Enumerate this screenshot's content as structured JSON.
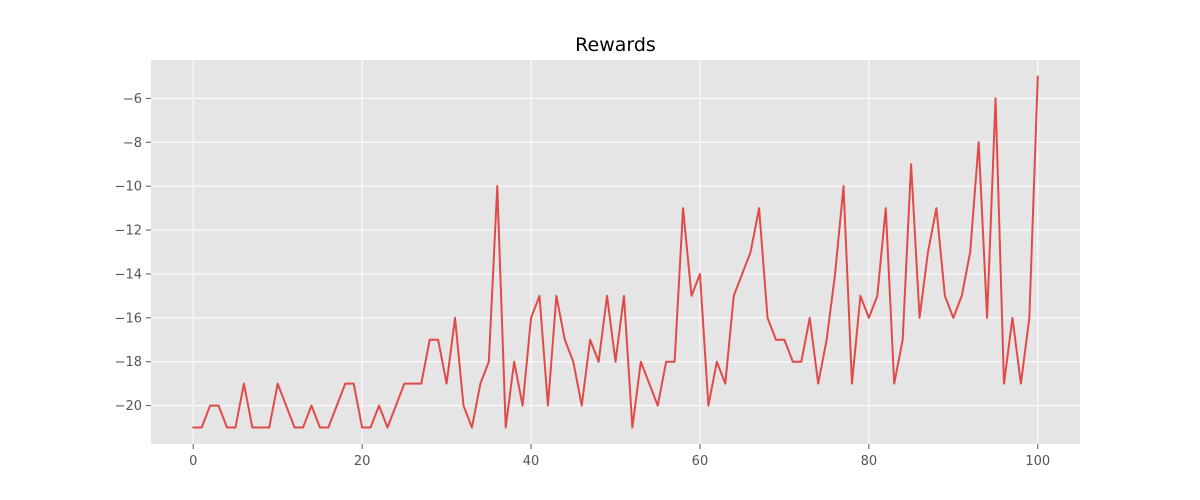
{
  "chart_data": {
    "type": "line",
    "title": "Rewards",
    "xlabel": "",
    "ylabel": "",
    "xlim": [
      -5,
      105
    ],
    "ylim": [
      -21.75,
      -4.25
    ],
    "xticks": [
      0,
      20,
      40,
      60,
      80,
      100
    ],
    "yticks": [
      -20,
      -18,
      -16,
      -14,
      -12,
      -10,
      -8,
      -6
    ],
    "grid": true,
    "legend": "none",
    "colors": {
      "plot_background": "#e5e5e5",
      "grid": "#ffffff",
      "line": "#e24a4a",
      "tick_text": "#555555"
    },
    "series": [
      {
        "x": [
          0,
          1,
          2,
          3,
          4,
          5,
          6,
          7,
          8,
          9,
          10,
          11,
          12,
          13,
          14,
          15,
          16,
          17,
          18,
          19,
          20,
          21,
          22,
          23,
          24,
          25,
          26,
          27,
          28,
          29,
          30,
          31,
          32,
          33,
          34,
          35,
          36,
          37,
          38,
          39,
          40,
          41,
          42,
          43,
          44,
          45,
          46,
          47,
          48,
          49,
          50,
          51,
          52,
          53,
          54,
          55,
          56,
          57,
          58,
          59,
          60,
          61,
          62,
          63,
          64,
          65,
          66,
          67,
          68,
          69,
          70,
          71,
          72,
          73,
          74,
          75,
          76,
          77,
          78,
          79,
          80,
          81,
          82,
          83,
          84,
          85,
          86,
          87,
          88,
          89,
          90,
          91,
          92,
          93,
          94,
          95,
          96,
          97,
          98,
          99,
          100
        ],
        "y": [
          -21,
          -21,
          -20,
          -20,
          -21,
          -21,
          -19,
          -21,
          -21,
          -21,
          -19,
          -20,
          -21,
          -21,
          -20,
          -21,
          -21,
          -20,
          -19,
          -19,
          -21,
          -21,
          -20,
          -21,
          -20,
          -19,
          -19,
          -19,
          -17,
          -17,
          -19,
          -16,
          -20,
          -21,
          -19,
          -18,
          -10,
          -21,
          -18,
          -20,
          -16,
          -15,
          -20,
          -15,
          -17,
          -18,
          -20,
          -17,
          -18,
          -15,
          -18,
          -15,
          -21,
          -18,
          -19,
          -20,
          -18,
          -18,
          -11,
          -15,
          -14,
          -20,
          -18,
          -19,
          -15,
          -14,
          -13,
          -11,
          -16,
          -17,
          -17,
          -18,
          -18,
          -16,
          -19,
          -17,
          -14,
          -10,
          -19,
          -15,
          -16,
          -15,
          -11,
          -19,
          -17,
          -9,
          -16,
          -13,
          -11,
          -15,
          -16,
          -15,
          -13,
          -8,
          -16,
          -6,
          -19,
          -16,
          -19,
          -16,
          -5
        ]
      }
    ]
  }
}
